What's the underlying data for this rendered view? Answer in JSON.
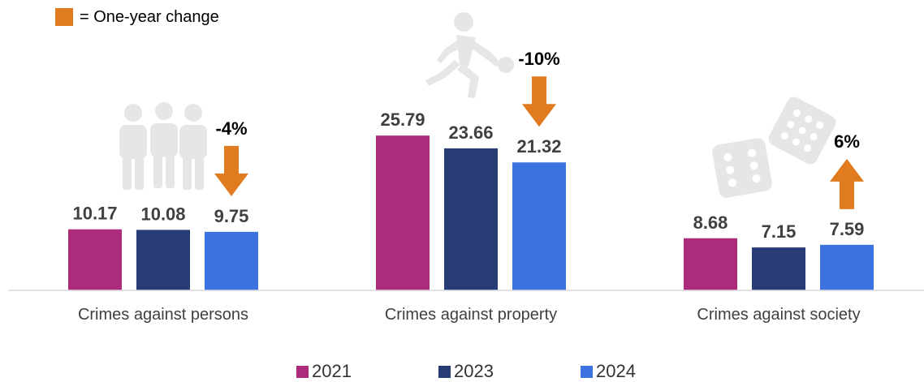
{
  "change_legend": {
    "label": "= One-year change",
    "color": "#e07b1f"
  },
  "chart_data": {
    "type": "bar",
    "categories": [
      "Crimes against persons",
      "Crimes against property",
      "Crimes against society"
    ],
    "series": [
      {
        "name": "2021",
        "color": "#ad2b7b",
        "values": [
          10.17,
          25.79,
          8.68
        ]
      },
      {
        "name": "2023",
        "color": "#273c75",
        "values": [
          10.08,
          23.66,
          7.15
        ]
      },
      {
        "name": "2024",
        "color": "#3d73e0",
        "values": [
          9.75,
          21.32,
          7.59
        ]
      }
    ],
    "value_labels": [
      [
        "10.17",
        "25.79",
        "8.68"
      ],
      [
        "10.08",
        "23.66",
        "7.15"
      ],
      [
        "9.75",
        "21.32",
        "7.59"
      ]
    ],
    "changes": [
      {
        "label": "-4%",
        "direction": "down"
      },
      {
        "label": "-10%",
        "direction": "down"
      },
      {
        "label": "6%",
        "direction": "up"
      }
    ],
    "category_icons": [
      "people-icon",
      "running-thief-icon",
      "dice-icon"
    ],
    "icon_color": "#e6e6e6",
    "ylim": [
      0,
      30
    ],
    "grid": false,
    "legend_position": "bottom"
  }
}
